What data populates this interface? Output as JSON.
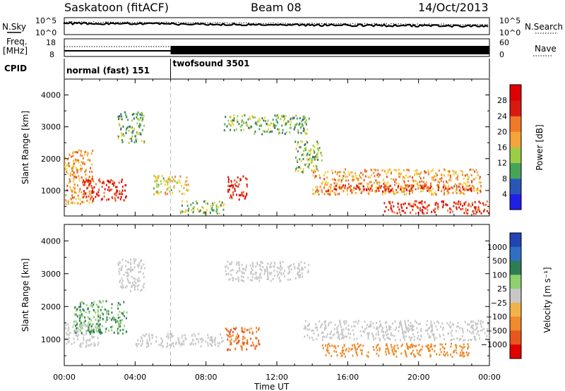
{
  "header": {
    "title_left": "Saskatoon (fitACF)",
    "title_center": "Beam 08",
    "title_right": "14/Oct/2013"
  },
  "strip_labels": {
    "nsky": "N.Sky",
    "nsearch": "N.Search",
    "freq": "Freq.",
    "freq_unit": "[MHz]",
    "nave": "Nave",
    "cpid": "CPID",
    "ns_tick_top": "10^5",
    "ns_tick_bottom": "10^0",
    "freq_tick_top": "18",
    "freq_tick_bottom": "8",
    "nave_tick_top": "60",
    "nave_tick_bottom": "0"
  },
  "cpid_modes": [
    {
      "label": "normal (fast) 151",
      "start_hour": 0,
      "end_hour": 6
    },
    {
      "label": "twofsound 3501",
      "start_hour": 6,
      "end_hour": 24
    }
  ],
  "colors": {
    "power_scale": [
      "#1f1fe6",
      "#2a56b8",
      "#3a7a54",
      "#46a35a",
      "#9ccd45",
      "#f4d034",
      "#f4a43a",
      "#f07a2a",
      "#e84a1a",
      "#d81a12",
      "#e00000"
    ],
    "velocity_scale": [
      "#2344b3",
      "#2f6fc4",
      "#2e7d55",
      "#5ab34a",
      "#8fd070",
      "#c8c8c8",
      "#bdbdbd",
      "#f2b24a",
      "#f08a2a",
      "#e8561c",
      "#e00000"
    ]
  },
  "chart_data": [
    {
      "type": "heatmap",
      "panel": "power",
      "ylabel": "Slant Range [km]",
      "xlabel": "",
      "xlim": [
        0,
        24
      ],
      "ylim": [
        200,
        4500
      ],
      "yticks": [
        "1000",
        "2000",
        "3000",
        "4000"
      ],
      "colorbar_label": "Power [dB]",
      "colorbar_ticks": [
        "4",
        "8",
        "12",
        "16",
        "20",
        "24",
        "28"
      ],
      "regions": [
        {
          "t_start": 0.0,
          "t_end": 1.6,
          "r_low": 600,
          "r_high": 2300,
          "value": 20
        },
        {
          "t_start": 1.0,
          "t_end": 3.5,
          "r_low": 700,
          "r_high": 1400,
          "value": 28
        },
        {
          "t_start": 3.0,
          "t_end": 4.5,
          "r_low": 2500,
          "r_high": 3500,
          "value": 10
        },
        {
          "t_start": 5.0,
          "t_end": 7.0,
          "r_low": 900,
          "r_high": 1500,
          "value": 16
        },
        {
          "t_start": 6.5,
          "t_end": 9.0,
          "r_low": 300,
          "r_high": 700,
          "value": 12
        },
        {
          "t_start": 9.2,
          "t_end": 10.3,
          "r_low": 700,
          "r_high": 1500,
          "value": 28
        },
        {
          "t_start": 9.0,
          "t_end": 10.5,
          "r_low": 2900,
          "r_high": 3400,
          "value": 12
        },
        {
          "t_start": 10.5,
          "t_end": 13.8,
          "r_low": 2800,
          "r_high": 3400,
          "value": 10
        },
        {
          "t_start": 13.0,
          "t_end": 14.5,
          "r_low": 1600,
          "r_high": 2600,
          "value": 12
        },
        {
          "t_start": 14.0,
          "t_end": 23.5,
          "r_low": 900,
          "r_high": 1700,
          "value": 20
        },
        {
          "t_start": 14.5,
          "t_end": 23.0,
          "r_low": 1000,
          "r_high": 1200,
          "value": 28
        },
        {
          "t_start": 18.0,
          "t_end": 24.0,
          "r_low": 300,
          "r_high": 700,
          "value": 28
        }
      ]
    },
    {
      "type": "heatmap",
      "panel": "velocity",
      "ylabel": "Slant Range [km]",
      "xlabel": "Time UT",
      "xlim": [
        0,
        24
      ],
      "ylim": [
        200,
        4500
      ],
      "xticks": [
        "00:00",
        "04:00",
        "08:00",
        "12:00",
        "16:00",
        "20:00",
        "00:00"
      ],
      "yticks": [
        "1000",
        "2000",
        "3000",
        "4000"
      ],
      "colorbar_label": "Velocity [m s⁻¹]",
      "colorbar_ticks": [
        "1000",
        "500",
        "100",
        "25",
        "−25",
        "−100",
        "−500",
        "−1000"
      ],
      "regions": [
        {
          "t_start": 0.0,
          "t_end": 2.0,
          "r_low": 800,
          "r_high": 1500,
          "value": 0
        },
        {
          "t_start": 0.5,
          "t_end": 3.5,
          "r_low": 1200,
          "r_high": 2200,
          "value": 100
        },
        {
          "t_start": 3.0,
          "t_end": 4.5,
          "r_low": 2500,
          "r_high": 3500,
          "value": 0
        },
        {
          "t_start": 4.0,
          "t_end": 9.0,
          "r_low": 800,
          "r_high": 1200,
          "value": 0
        },
        {
          "t_start": 9.0,
          "t_end": 11.0,
          "r_low": 700,
          "r_high": 1400,
          "value": -500
        },
        {
          "t_start": 9.0,
          "t_end": 13.8,
          "r_low": 2800,
          "r_high": 3400,
          "value": 0
        },
        {
          "t_start": 13.5,
          "t_end": 24.0,
          "r_low": 1000,
          "r_high": 1600,
          "value": 0
        },
        {
          "t_start": 14.5,
          "t_end": 23.0,
          "r_low": 500,
          "r_high": 900,
          "value": -300
        }
      ]
    }
  ]
}
